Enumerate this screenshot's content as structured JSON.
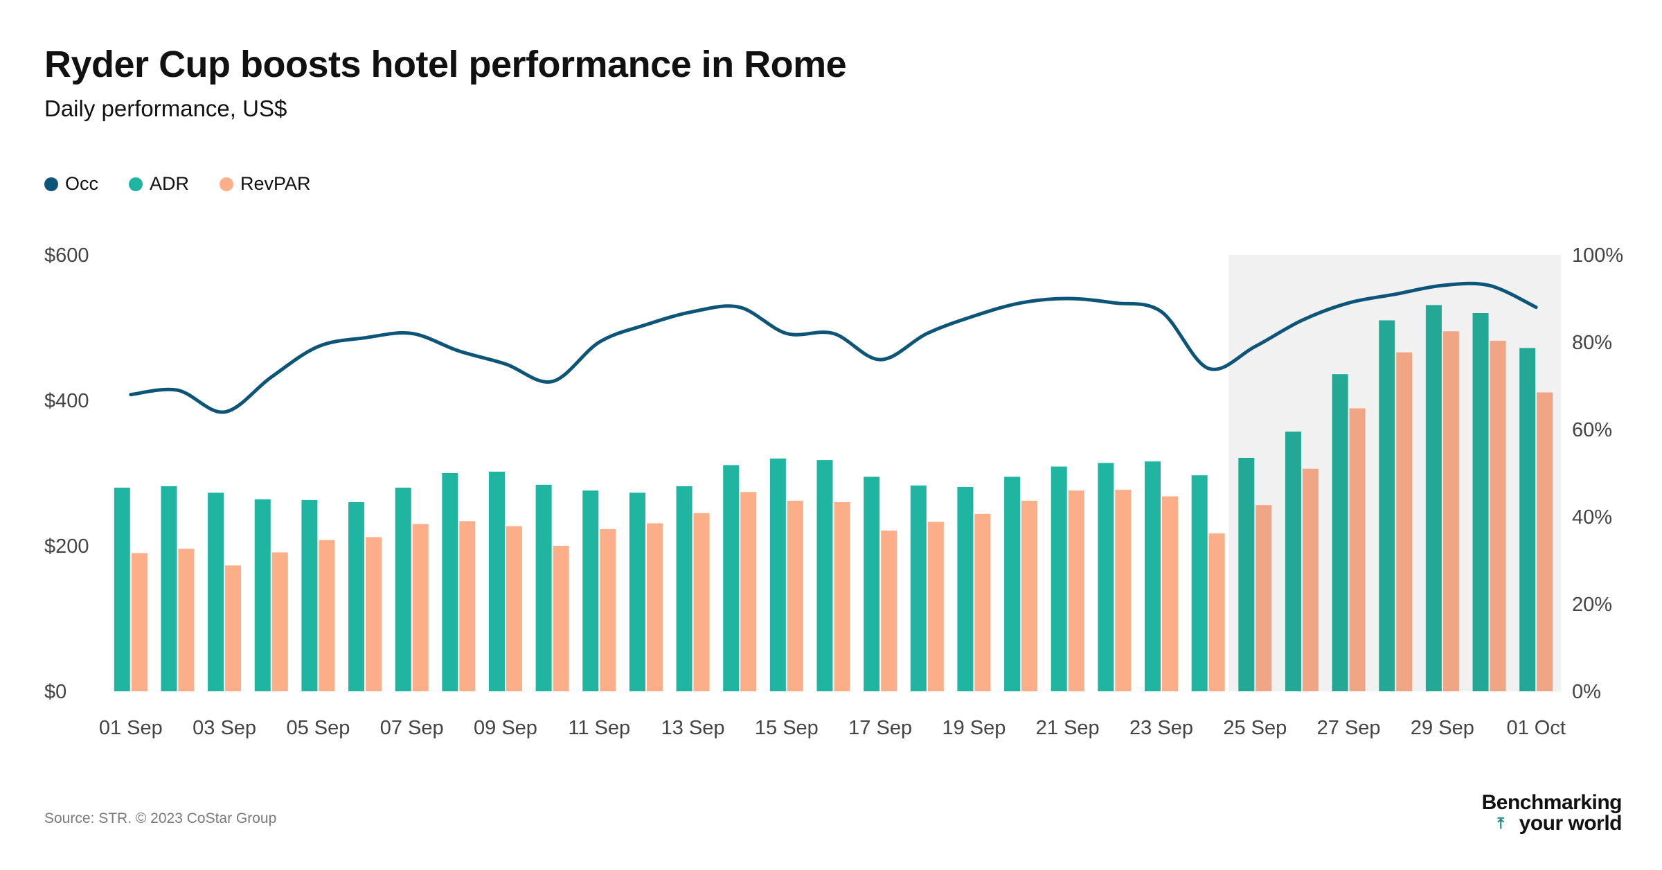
{
  "title": "Ryder Cup boosts hotel performance in Rome",
  "subtitle": "Daily performance, US$",
  "source": "Source: STR. © 2023 CoStar Group",
  "brand": {
    "line1": "Benchmarking",
    "line2": "your world",
    "arrow_icon": "up-arrow-icon"
  },
  "colors": {
    "occ": "#0c5478",
    "adr": "#1fb5a0",
    "revpar": "#fbae88",
    "highlight": "#f1f1f1"
  },
  "legend": [
    {
      "key": "occ",
      "label": "Occ"
    },
    {
      "key": "adr",
      "label": "ADR"
    },
    {
      "key": "revpar",
      "label": "RevPAR"
    }
  ],
  "chart_data": {
    "type": "bar",
    "categories": [
      "01 Sep",
      "02 Sep",
      "03 Sep",
      "04 Sep",
      "05 Sep",
      "06 Sep",
      "07 Sep",
      "08 Sep",
      "09 Sep",
      "10 Sep",
      "11 Sep",
      "12 Sep",
      "13 Sep",
      "14 Sep",
      "15 Sep",
      "16 Sep",
      "17 Sep",
      "18 Sep",
      "19 Sep",
      "20 Sep",
      "21 Sep",
      "22 Sep",
      "23 Sep",
      "24 Sep",
      "25 Sep",
      "26 Sep",
      "27 Sep",
      "28 Sep",
      "29 Sep",
      "30 Sep",
      "01 Oct"
    ],
    "x_tick_labels": [
      "01 Sep",
      "03 Sep",
      "05 Sep",
      "07 Sep",
      "09 Sep",
      "11 Sep",
      "13 Sep",
      "15 Sep",
      "17 Sep",
      "19 Sep",
      "21 Sep",
      "23 Sep",
      "25 Sep",
      "27 Sep",
      "29 Sep",
      "01 Oct"
    ],
    "series": [
      {
        "name": "ADR",
        "axis": "left",
        "kind": "bar",
        "values": [
          280,
          282,
          273,
          264,
          263,
          260,
          280,
          300,
          302,
          284,
          276,
          273,
          282,
          311,
          320,
          318,
          295,
          283,
          281,
          295,
          309,
          314,
          316,
          297,
          321,
          357,
          436,
          510,
          531,
          520,
          472
        ]
      },
      {
        "name": "RevPAR",
        "axis": "left",
        "kind": "bar",
        "values": [
          190,
          196,
          173,
          191,
          208,
          212,
          230,
          234,
          227,
          200,
          223,
          231,
          245,
          274,
          262,
          260,
          221,
          233,
          244,
          262,
          276,
          277,
          268,
          217,
          256,
          306,
          389,
          466,
          495,
          482,
          411
        ]
      },
      {
        "name": "Occ",
        "axis": "right",
        "kind": "line",
        "values": [
          68,
          69,
          64,
          72,
          79,
          81,
          82,
          78,
          75,
          71,
          80,
          84,
          87,
          88,
          82,
          82,
          76,
          82,
          86,
          89,
          90,
          89,
          87,
          74,
          79,
          85,
          89,
          91,
          93,
          93,
          88
        ]
      }
    ],
    "y_left": {
      "ticks": [
        "$0",
        "$200",
        "$400",
        "$600"
      ],
      "min": 0,
      "max": 600
    },
    "y_right": {
      "ticks": [
        "0%",
        "20%",
        "40%",
        "60%",
        "80%",
        "100%"
      ],
      "min": 0,
      "max": 100
    },
    "highlight_range": [
      "25 Sep",
      "01 Oct"
    ],
    "legend_position": "top-left",
    "grid": false
  }
}
